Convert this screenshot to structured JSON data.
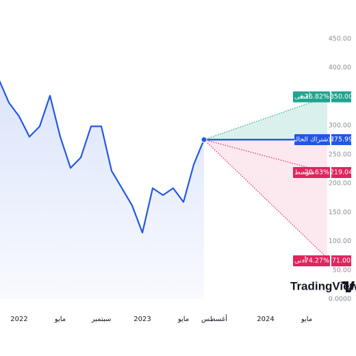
{
  "chart_data": {
    "type": "line",
    "x": [
      "2021-11",
      "2021-12",
      "2022-01",
      "2022-02",
      "2022-03",
      "2022-04",
      "2022-05",
      "2022-06",
      "2022-07",
      "2022-08",
      "2022-09",
      "2022-10",
      "2022-11",
      "2022-12",
      "2023-01",
      "2023-02",
      "2023-03",
      "2023-04",
      "2023-05",
      "2023-06",
      "2023-07"
    ],
    "values": [
      381,
      340,
      316,
      281,
      299,
      352,
      281,
      227,
      245,
      299,
      299,
      222,
      192,
      162,
      115,
      192,
      180,
      192,
      168,
      233,
      275.99
    ],
    "color": "#2157e3",
    "xlim": [
      "2021-11",
      "2024-10"
    ],
    "xticks": [
      {
        "value": "2022-01",
        "label": "2022"
      },
      {
        "value": "2022-05",
        "label": "مايو"
      },
      {
        "value": "2022-09",
        "label": "سبتمبر"
      },
      {
        "value": "2023-01",
        "label": "2023"
      },
      {
        "value": "2023-05",
        "label": "مايو"
      },
      {
        "value": "2023-08",
        "label": "أغسطس"
      },
      {
        "value": "2024-01",
        "label": "2024"
      },
      {
        "value": "2024-05",
        "label": "مايو"
      }
    ],
    "ylim": [
      0,
      450
    ],
    "yticks": [
      {
        "value": 450,
        "label": "450.00"
      },
      {
        "value": 400,
        "label": "400.00"
      },
      {
        "value": 350,
        "label": "350.00"
      },
      {
        "value": 300,
        "label": "300.00"
      },
      {
        "value": 250,
        "label": "250.00"
      },
      {
        "value": 200,
        "label": "200.00"
      },
      {
        "value": 150,
        "label": "150.00"
      },
      {
        "value": 100,
        "label": "100.00"
      },
      {
        "value": 50,
        "label": "50.00"
      },
      {
        "value": 0,
        "label": "0.0000"
      }
    ],
    "forecast": {
      "x": "2024-07",
      "levels": [
        {
          "label": "أقصى",
          "change": {
            "value": 26.82,
            "label": "+26.82%"
          },
          "value": 350,
          "value_label": "350.00",
          "color": "#22a48f"
        },
        {
          "label": "الاشتراك الحالي",
          "value": 275.99,
          "value_label": "275.99",
          "color": "#2157e3"
        },
        {
          "label": "متوسط",
          "change": {
            "value": -20.63,
            "label": "-20.63%"
          },
          "value": 219.04,
          "value_label": "219.04",
          "color": "#e0245e"
        },
        {
          "label": "أدنى",
          "change": {
            "value": -74.27,
            "label": "-74.27%"
          },
          "value": 71,
          "value_label": "71.00",
          "color": "#e0245e"
        }
      ]
    },
    "logo": "TradingView"
  }
}
